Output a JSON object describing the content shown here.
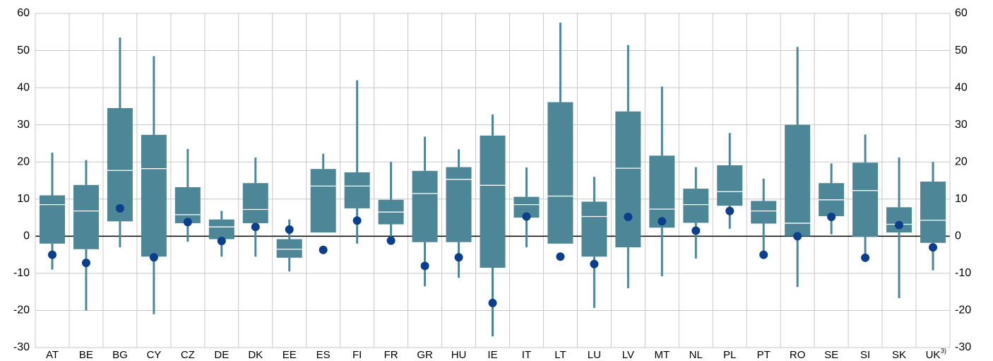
{
  "chart_data": {
    "type": "box",
    "categories": [
      "AT",
      "BE",
      "BG",
      "CY",
      "CZ",
      "DE",
      "DK",
      "EE",
      "ES",
      "FI",
      "FR",
      "GR",
      "HU",
      "IE",
      "IT",
      "LT",
      "LU",
      "LV",
      "MT",
      "NL",
      "PL",
      "PT",
      "RO",
      "SE",
      "SI",
      "SK",
      "UK"
    ],
    "category_notes": {
      "UK": "3)"
    },
    "box_color": "#4d8797",
    "median_color": "#ffffff",
    "dot_color": "#0b3f8c",
    "whisker_low": [
      -9,
      -20,
      -3,
      -21,
      -1.5,
      -5.5,
      -5.5,
      -9.5,
      1,
      -2,
      -1,
      -13.5,
      -11.2,
      -27,
      -3,
      -2,
      -19.3,
      -14,
      -10.8,
      -6,
      2,
      -4,
      -13.7,
      0.5,
      -5.8,
      -16.7,
      -9.2
    ],
    "q1": [
      -2,
      -3.5,
      4,
      -5.5,
      3.5,
      -0.8,
      3.5,
      -5.8,
      1,
      7.5,
      3.2,
      -1.6,
      -1.6,
      -8.5,
      5,
      -2,
      -5.5,
      -3,
      2.3,
      3.6,
      8.2,
      3.4,
      0,
      5.4,
      -0.2,
      1,
      -1.8
    ],
    "median": [
      8.5,
      6.8,
      17.7,
      18.2,
      5.8,
      2.5,
      7.2,
      -3.5,
      13.5,
      13.5,
      6.5,
      11.5,
      15.3,
      13.7,
      8.5,
      10.8,
      5.3,
      18.3,
      7.3,
      8.5,
      12,
      6.8,
      3.5,
      9.8,
      12.3,
      3.2,
      4.3
    ],
    "q3": [
      11,
      13.8,
      34.5,
      27.3,
      13.2,
      4.5,
      14.3,
      -0.8,
      18.1,
      17.2,
      9.8,
      17.6,
      18.6,
      27.1,
      10.6,
      36.1,
      9.3,
      33.6,
      21.7,
      12.8,
      19.1,
      9.5,
      30,
      14.3,
      19.8,
      7.8,
      14.7
    ],
    "whisker_high": [
      22.5,
      20.5,
      53.5,
      48.5,
      23.5,
      6.8,
      21.2,
      4.5,
      22.2,
      42,
      20,
      26.8,
      23.4,
      32.8,
      18.5,
      57.5,
      16,
      51.5,
      40.3,
      18.6,
      27.8,
      15.5,
      51,
      19.6,
      27.4,
      21.2,
      20
    ],
    "dots": [
      -5,
      -7.2,
      7.5,
      -5.7,
      3.8,
      -1.3,
      2.5,
      1.8,
      -3.7,
      4.2,
      -1.2,
      -8,
      -5.7,
      -18,
      5.3,
      -5.5,
      -7.5,
      5.2,
      4,
      1.5,
      6.8,
      -5,
      0,
      5.2,
      -5.8,
      3,
      -3
    ],
    "ylim": [
      -30,
      60
    ],
    "yticks": [
      -30,
      -20,
      -10,
      0,
      10,
      20,
      30,
      40,
      50,
      60
    ],
    "y2lim": [
      -30,
      60
    ],
    "y2ticks": [
      -30,
      -20,
      -10,
      0,
      10,
      20,
      30,
      40,
      50,
      60
    ],
    "grid": true
  }
}
